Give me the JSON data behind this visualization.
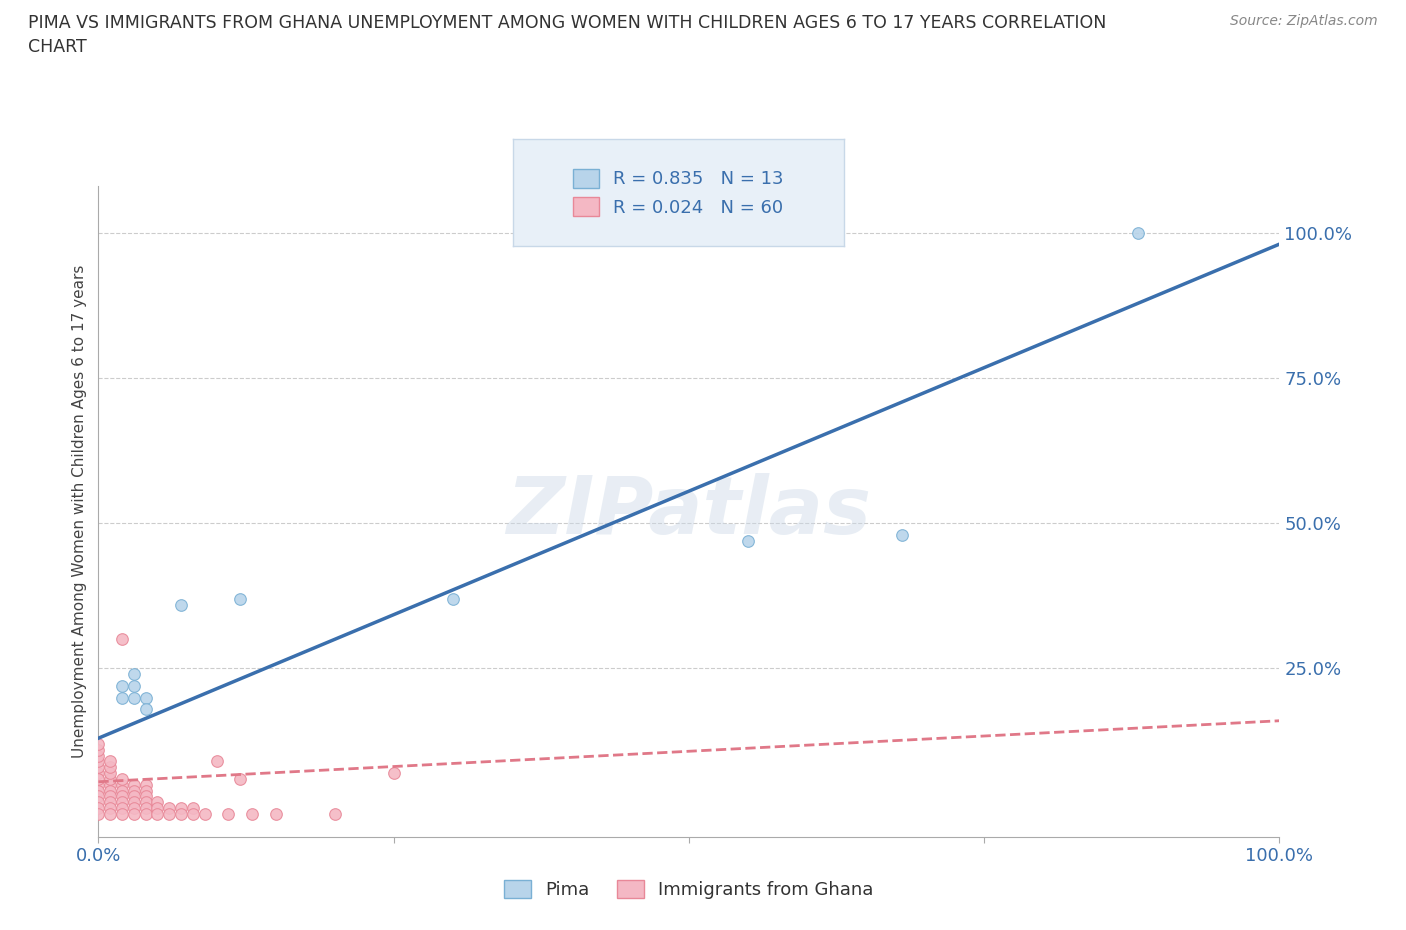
{
  "title": "PIMA VS IMMIGRANTS FROM GHANA UNEMPLOYMENT AMONG WOMEN WITH CHILDREN AGES 6 TO 17 YEARS CORRELATION\nCHART",
  "source_text": "Source: ZipAtlas.com",
  "ylabel": "Unemployment Among Women with Children Ages 6 to 17 years",
  "watermark": "ZIPatlas",
  "pima_color": "#b8d4ea",
  "pima_edge_color": "#7ab0d4",
  "ghana_color": "#f4b8c4",
  "ghana_edge_color": "#e88898",
  "pima_R": 0.835,
  "pima_N": 13,
  "ghana_R": 0.024,
  "ghana_N": 60,
  "pima_line_color": "#3a6fad",
  "ghana_line_color": "#e07888",
  "pima_scatter": [
    [
      0.02,
      0.2
    ],
    [
      0.02,
      0.22
    ],
    [
      0.03,
      0.22
    ],
    [
      0.03,
      0.24
    ],
    [
      0.03,
      0.2
    ],
    [
      0.04,
      0.2
    ],
    [
      0.04,
      0.18
    ],
    [
      0.07,
      0.36
    ],
    [
      0.12,
      0.37
    ],
    [
      0.55,
      0.47
    ],
    [
      0.88,
      1.0
    ],
    [
      0.68,
      0.48
    ],
    [
      0.3,
      0.37
    ]
  ],
  "ghana_scatter": [
    [
      0.0,
      0.05
    ],
    [
      0.0,
      0.07
    ],
    [
      0.0,
      0.08
    ],
    [
      0.0,
      0.09
    ],
    [
      0.0,
      0.1
    ],
    [
      0.0,
      0.11
    ],
    [
      0.0,
      0.12
    ],
    [
      0.0,
      0.06
    ],
    [
      0.0,
      0.04
    ],
    [
      0.0,
      0.03
    ],
    [
      0.0,
      0.02
    ],
    [
      0.0,
      0.01
    ],
    [
      0.0,
      0.0
    ],
    [
      0.01,
      0.05
    ],
    [
      0.01,
      0.06
    ],
    [
      0.01,
      0.07
    ],
    [
      0.01,
      0.08
    ],
    [
      0.01,
      0.09
    ],
    [
      0.01,
      0.04
    ],
    [
      0.01,
      0.03
    ],
    [
      0.01,
      0.02
    ],
    [
      0.01,
      0.01
    ],
    [
      0.01,
      0.0
    ],
    [
      0.02,
      0.05
    ],
    [
      0.02,
      0.06
    ],
    [
      0.02,
      0.04
    ],
    [
      0.02,
      0.03
    ],
    [
      0.02,
      0.02
    ],
    [
      0.02,
      0.01
    ],
    [
      0.02,
      0.0
    ],
    [
      0.02,
      0.3
    ],
    [
      0.03,
      0.05
    ],
    [
      0.03,
      0.04
    ],
    [
      0.03,
      0.03
    ],
    [
      0.03,
      0.02
    ],
    [
      0.03,
      0.01
    ],
    [
      0.03,
      0.0
    ],
    [
      0.04,
      0.05
    ],
    [
      0.04,
      0.04
    ],
    [
      0.04,
      0.03
    ],
    [
      0.04,
      0.02
    ],
    [
      0.04,
      0.01
    ],
    [
      0.04,
      0.0
    ],
    [
      0.05,
      0.02
    ],
    [
      0.05,
      0.01
    ],
    [
      0.05,
      0.0
    ],
    [
      0.06,
      0.01
    ],
    [
      0.06,
      0.0
    ],
    [
      0.07,
      0.01
    ],
    [
      0.07,
      0.0
    ],
    [
      0.08,
      0.01
    ],
    [
      0.08,
      0.0
    ],
    [
      0.09,
      0.0
    ],
    [
      0.1,
      0.09
    ],
    [
      0.11,
      0.0
    ],
    [
      0.12,
      0.06
    ],
    [
      0.13,
      0.0
    ],
    [
      0.15,
      0.0
    ],
    [
      0.2,
      0.0
    ],
    [
      0.25,
      0.07
    ]
  ],
  "pima_line_x": [
    0.0,
    1.0
  ],
  "pima_line_y": [
    0.13,
    0.98
  ],
  "ghana_line_x": [
    0.0,
    1.0
  ],
  "ghana_line_y": [
    0.055,
    0.16
  ],
  "xlim": [
    0.0,
    1.0
  ],
  "ylim": [
    -0.04,
    1.08
  ],
  "ytick_positions": [
    0.0,
    0.25,
    0.5,
    0.75,
    1.0
  ],
  "ytick_labels": [
    "",
    "25.0%",
    "50.0%",
    "75.0%",
    "100.0%"
  ],
  "xtick_positions": [
    0.0,
    0.25,
    0.5,
    0.75,
    1.0
  ],
  "xtick_labels": [
    "0.0%",
    "",
    "",
    "",
    "100.0%"
  ],
  "grid_color": "#cccccc",
  "bg_color": "#ffffff",
  "marker_size": 70,
  "legend_box_color": "#e8f0f8",
  "legend_border_color": "#c8d8e8"
}
